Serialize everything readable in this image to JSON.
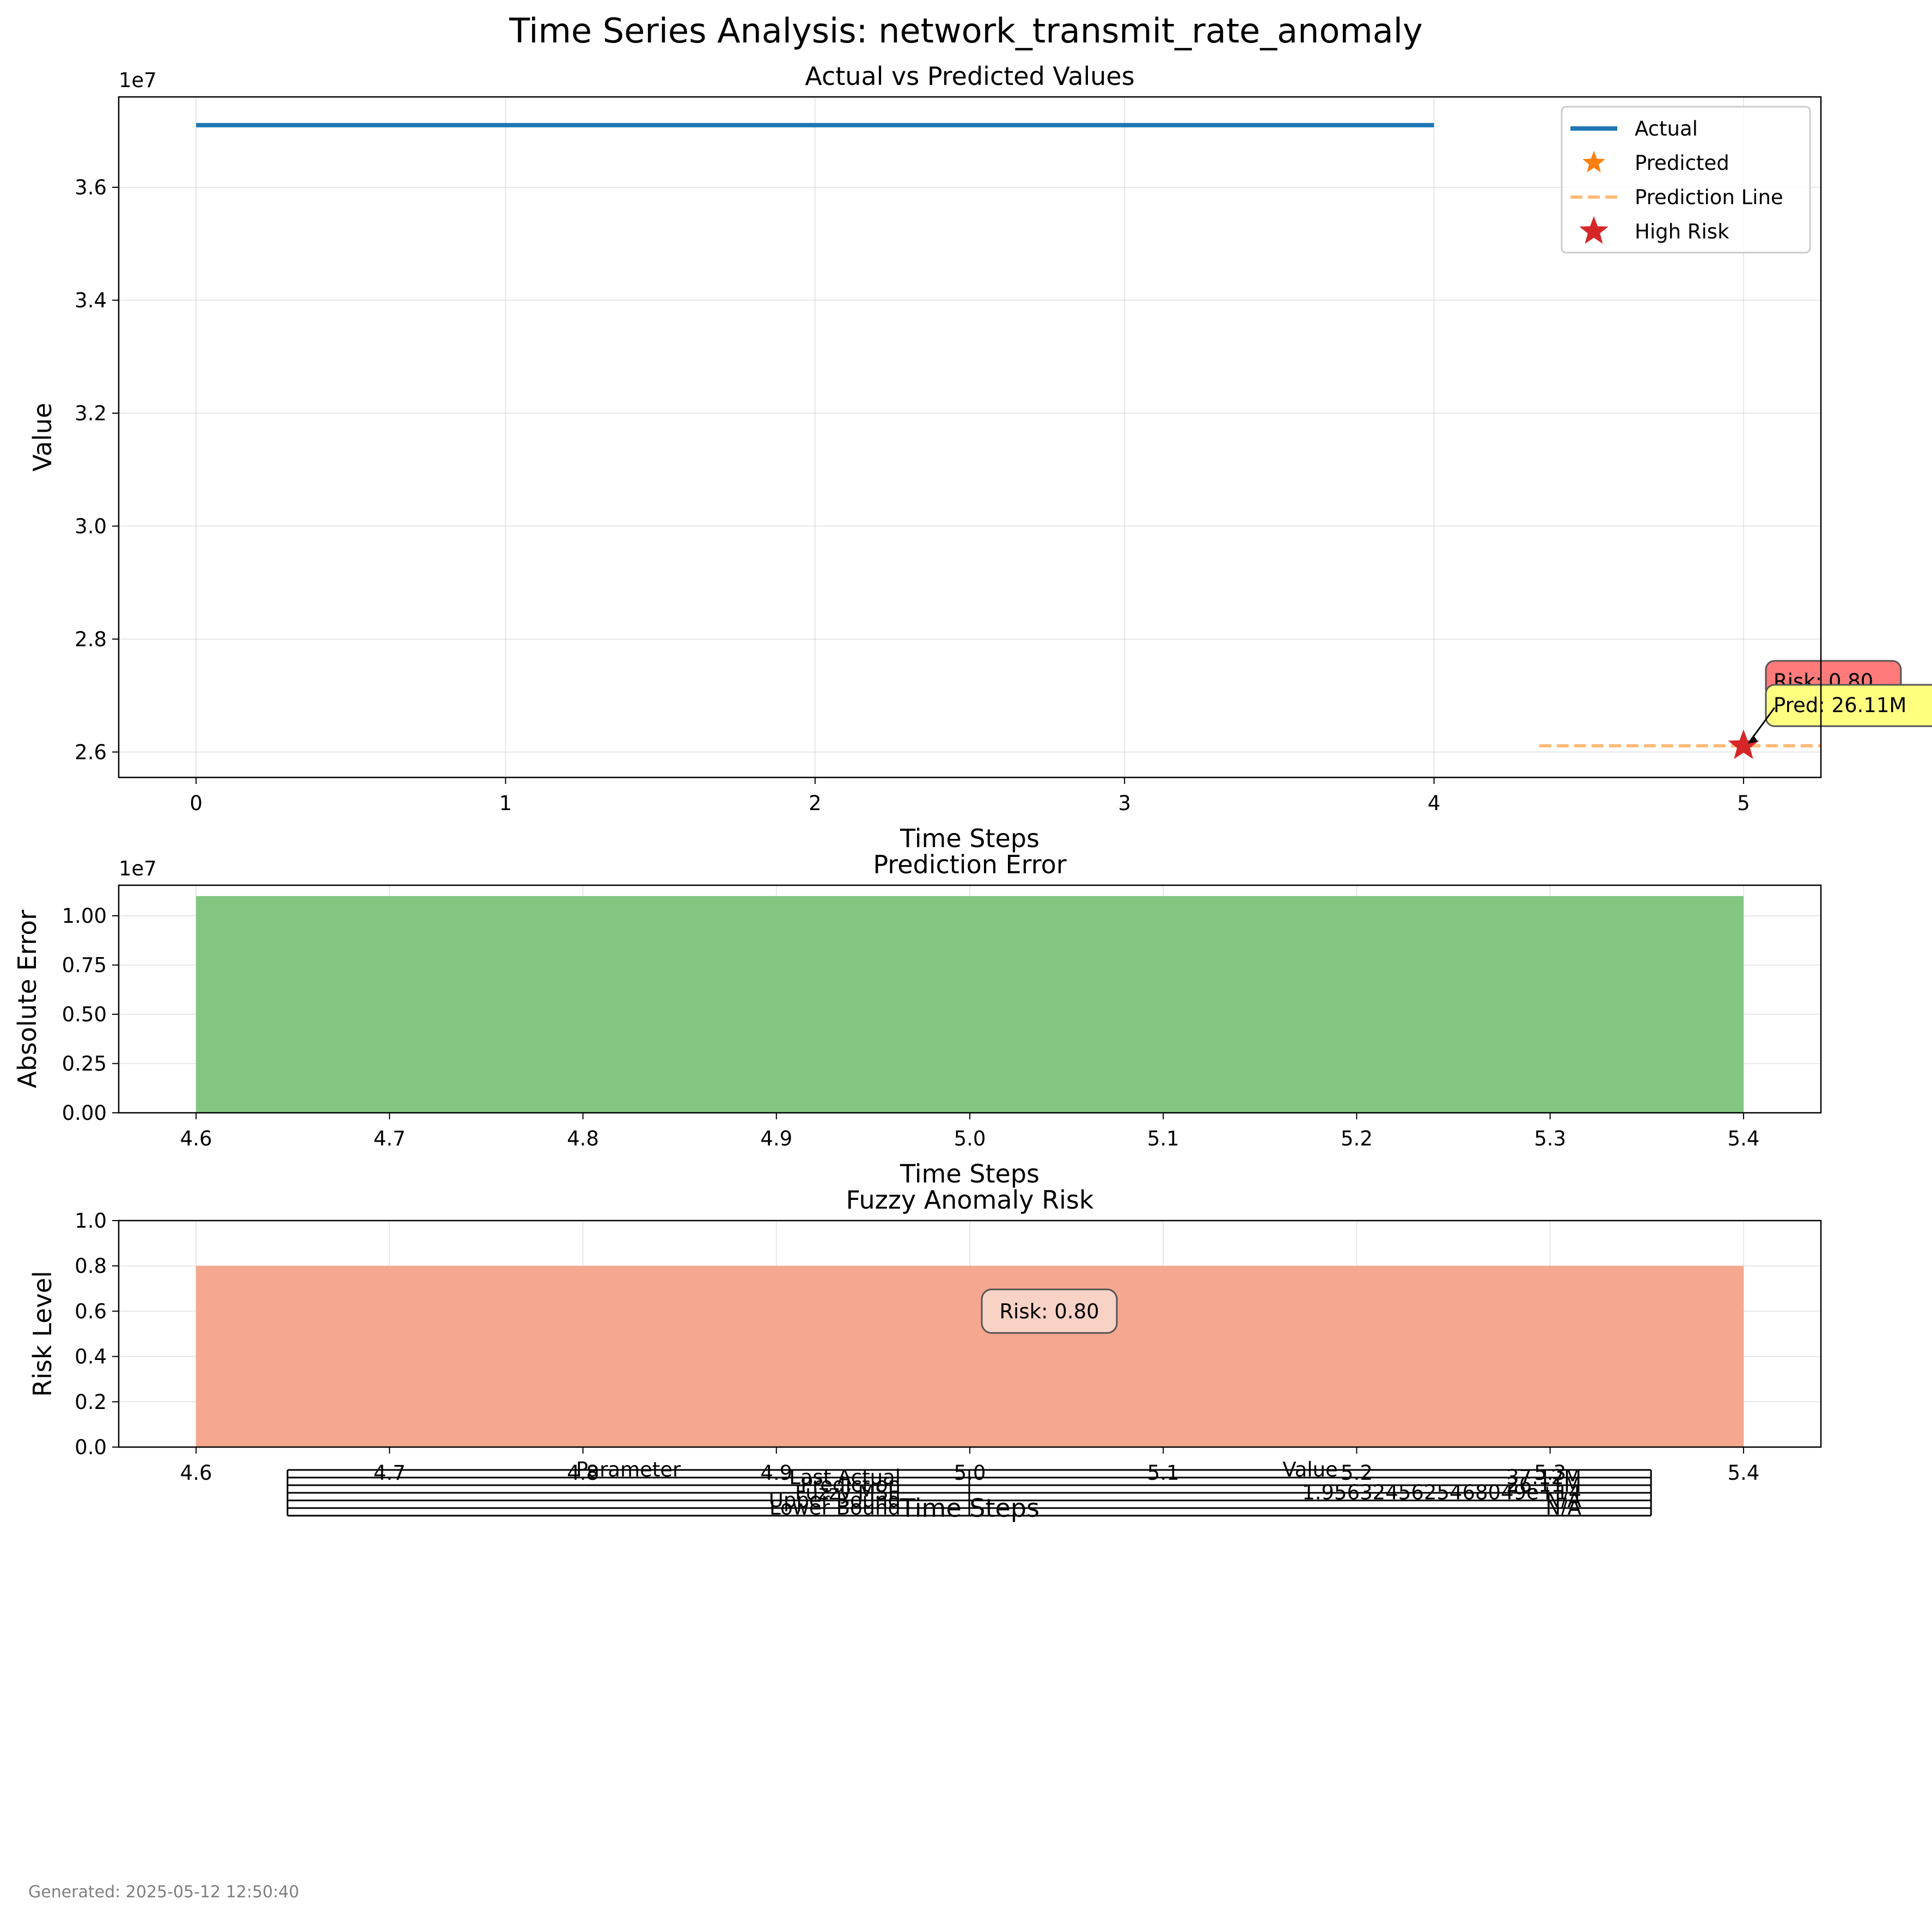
{
  "title": "Time Series Analysis: network_transmit_rate_anomaly",
  "footer": "Generated: 2025-05-12 12:50:40",
  "colors": {
    "actual": "#1f77b4",
    "predicted": "#ff7f0e",
    "prediction_line": "#ffbb78",
    "high_risk": "#d62728",
    "error_bar": "#82c682",
    "risk_bar": "#f5a78f",
    "risk_note_bg": "#ff7b7b",
    "pred_note_bg": "#ffff80",
    "risk_box_bg": "#f9d2c6"
  },
  "chart_data": [
    {
      "type": "line",
      "title": "Actual vs Predicted Values",
      "xlabel": "Time Steps",
      "ylabel": "Value",
      "y_offset_label": "1e7",
      "xlim": [
        -0.25,
        5.25
      ],
      "ylim": [
        25550000,
        37600000
      ],
      "xticks": [
        0,
        1,
        2,
        3,
        4,
        5
      ],
      "yticks": [
        26000000,
        28000000,
        30000000,
        32000000,
        34000000,
        36000000
      ],
      "ytick_labels": [
        "2.6",
        "2.8",
        "3.0",
        "3.2",
        "3.4",
        "3.6"
      ],
      "grid": true,
      "legend_placement": "top-right",
      "legend": [
        "Actual",
        "Predicted",
        "Prediction Line",
        "High Risk"
      ],
      "series": [
        {
          "name": "Actual",
          "x": [
            0,
            1,
            2,
            3,
            4
          ],
          "y": [
            37100000,
            37100000,
            37100000,
            37100000,
            37100000
          ]
        },
        {
          "name": "Predicted",
          "x": [
            5
          ],
          "y": [
            26110000
          ]
        },
        {
          "name": "Prediction Line",
          "x": [
            4.34,
            5.25
          ],
          "y": [
            26110000,
            26110000
          ]
        },
        {
          "name": "High Risk",
          "x": [
            5
          ],
          "y": [
            26110000
          ]
        }
      ],
      "annotations": [
        "Risk: 0.80",
        "Pred: 26.11M"
      ]
    },
    {
      "type": "bar",
      "title": "Prediction Error",
      "xlabel": "Time Steps",
      "ylabel": "Absolute Error",
      "y_offset_label": "1e7",
      "xlim": [
        4.56,
        5.44
      ],
      "ylim": [
        0,
        11550000
      ],
      "xticks": [
        4.6,
        4.7,
        4.8,
        4.9,
        5.0,
        5.1,
        5.2,
        5.3,
        5.4
      ],
      "xtick_labels": [
        "4.6",
        "4.7",
        "4.8",
        "4.9",
        "5.0",
        "5.1",
        "5.2",
        "5.3",
        "5.4"
      ],
      "yticks": [
        0,
        2500000,
        5000000,
        7500000,
        10000000
      ],
      "ytick_labels": [
        "0.00",
        "0.25",
        "0.50",
        "0.75",
        "1.00"
      ],
      "grid": true,
      "x": [
        5.0
      ],
      "bar_width": 0.8,
      "values": [
        11000000
      ]
    },
    {
      "type": "bar",
      "title": "Fuzzy Anomaly Risk",
      "xlabel": "Time Steps",
      "ylabel": "Risk Level",
      "xlim": [
        4.56,
        5.44
      ],
      "ylim": [
        0,
        1
      ],
      "xticks": [
        4.6,
        4.7,
        4.8,
        4.9,
        5.0,
        5.1,
        5.2,
        5.3,
        5.4
      ],
      "xtick_labels": [
        "4.6",
        "4.7",
        "4.8",
        "4.9",
        "5.0",
        "5.1",
        "5.2",
        "5.3",
        "5.4"
      ],
      "yticks": [
        0,
        0.2,
        0.4,
        0.6,
        0.8,
        1.0
      ],
      "ytick_labels": [
        "0.0",
        "0.2",
        "0.4",
        "0.6",
        "0.8",
        "1.0"
      ],
      "grid": true,
      "x": [
        5.0
      ],
      "bar_width": 0.8,
      "values": [
        0.8
      ],
      "annotations": [
        "Risk: 0.80"
      ]
    },
    {
      "type": "table",
      "columns": [
        "Parameter",
        "Value"
      ],
      "rows": [
        [
          "Last Actual",
          "37.12M"
        ],
        [
          "Prediction",
          "26.11M"
        ],
        [
          "Fuzzy MSE",
          "1.9563245625468049e+14"
        ],
        [
          "Upper Bound",
          "N/A"
        ],
        [
          "Lower Bound",
          "N/A"
        ]
      ]
    }
  ]
}
